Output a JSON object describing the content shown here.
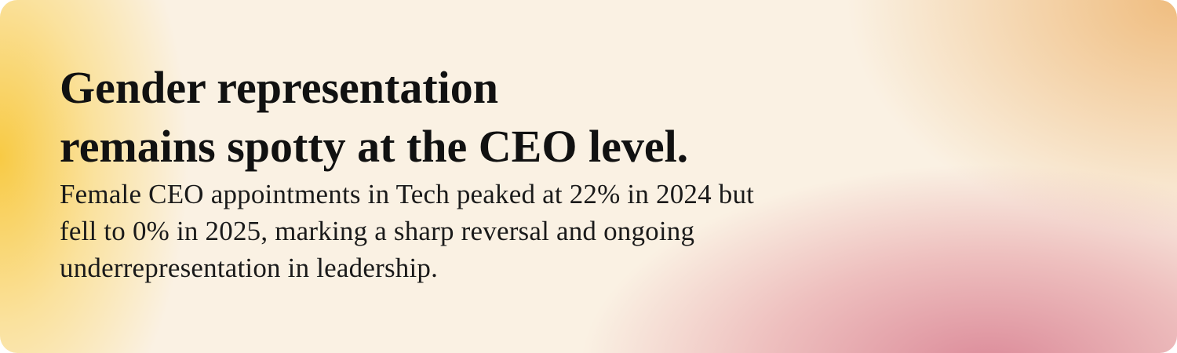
{
  "header": {
    "title_lines": [
      "Gender representation",
      "remains spotty at the CEO level."
    ]
  },
  "body": {
    "lines": [
      "Female CEO appointments in Tech peaked at 22% in 2024 but",
      "fell to 0% in 2025, marking a sharp reversal and ongoing",
      "underrepresentation in leadership."
    ]
  }
}
